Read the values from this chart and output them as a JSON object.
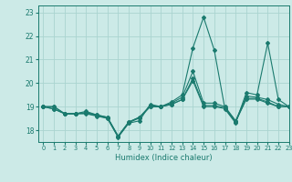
{
  "xlabel": "Humidex (Indice chaleur)",
  "background_color": "#cceae7",
  "grid_color": "#aad4d0",
  "line_color": "#1a7a6e",
  "xlim": [
    -0.5,
    23
  ],
  "ylim": [
    17.5,
    23.3
  ],
  "yticks": [
    18,
    19,
    20,
    21,
    22,
    23
  ],
  "xticks": [
    0,
    1,
    2,
    3,
    4,
    5,
    6,
    7,
    8,
    9,
    10,
    11,
    12,
    13,
    14,
    15,
    16,
    17,
    18,
    19,
    20,
    21,
    22,
    23
  ],
  "series": [
    [
      19.0,
      19.0,
      18.7,
      18.7,
      18.7,
      18.6,
      18.5,
      17.7,
      18.3,
      18.4,
      19.1,
      19.0,
      19.2,
      19.5,
      21.5,
      22.8,
      21.4,
      18.9,
      18.3,
      19.6,
      19.5,
      21.7,
      19.3,
      19.0
    ],
    [
      19.0,
      19.0,
      18.7,
      18.7,
      18.8,
      18.65,
      18.55,
      17.75,
      18.35,
      18.55,
      19.05,
      19.0,
      19.15,
      19.4,
      20.5,
      19.15,
      19.15,
      19.0,
      18.4,
      19.45,
      19.4,
      19.3,
      19.1,
      19.0
    ],
    [
      19.0,
      18.9,
      18.7,
      18.7,
      18.75,
      18.65,
      18.55,
      17.75,
      18.35,
      18.55,
      19.0,
      19.0,
      19.1,
      19.3,
      20.2,
      19.05,
      19.05,
      18.95,
      18.38,
      19.35,
      19.35,
      19.2,
      19.0,
      19.0
    ],
    [
      19.0,
      18.9,
      18.7,
      18.7,
      18.72,
      18.62,
      18.52,
      17.72,
      18.32,
      18.52,
      19.0,
      19.0,
      19.1,
      19.3,
      20.1,
      19.0,
      19.0,
      18.92,
      18.36,
      19.32,
      19.32,
      19.15,
      19.0,
      19.0
    ]
  ]
}
